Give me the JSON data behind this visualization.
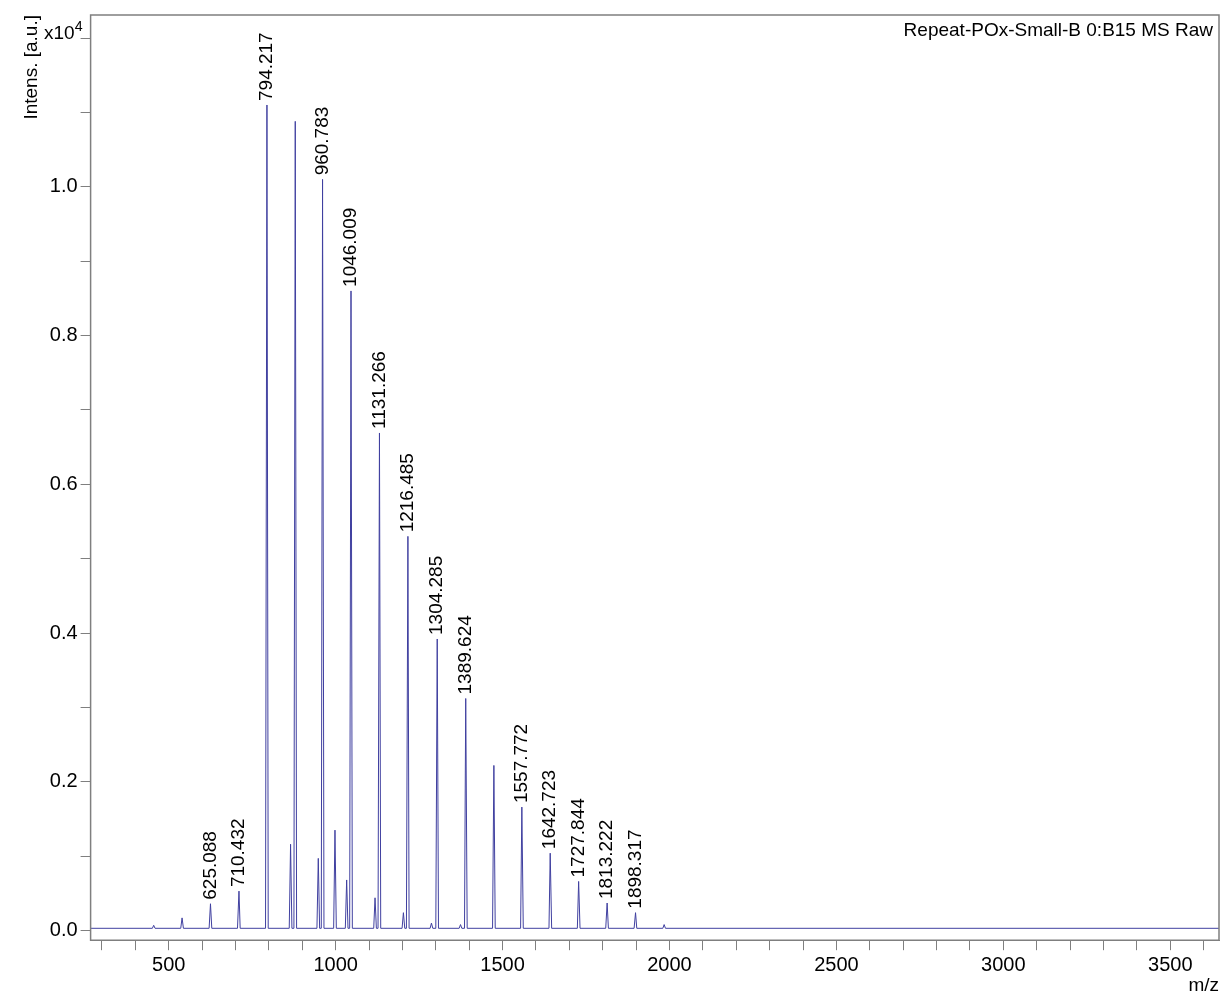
{
  "chart_data": {
    "type": "line",
    "xlabel": "m/z",
    "ylabel": "Intens. [a.u.]",
    "annotations": [
      "Repeat-POx-Small-B 0:B15 MS Raw",
      "x10$^{4}$",
      {
        "text": "625.088",
        "x": 625.088,
        "y": 0.036
      },
      {
        "text": "710.432",
        "x": 710.432,
        "y": 0.053
      },
      {
        "text": "794.217",
        "x": 794.217,
        "y": 1.11
      },
      {
        "text": "960.783",
        "x": 960.783,
        "y": 1.01
      },
      {
        "text": "1046.009",
        "x": 1046.009,
        "y": 0.86
      },
      {
        "text": "1131.266",
        "x": 1131.266,
        "y": 0.669
      },
      {
        "text": "1216.485",
        "x": 1216.485,
        "y": 0.53
      },
      {
        "text": "1304.285",
        "x": 1304.285,
        "y": 0.392
      },
      {
        "text": "1389.624",
        "x": 1389.624,
        "y": 0.312
      },
      {
        "text": "1557.772",
        "x": 1557.772,
        "y": 0.166
      },
      {
        "text": "1642.723",
        "x": 1642.723,
        "y": 0.104
      },
      {
        "text": "1727.844",
        "x": 1727.844,
        "y": 0.066
      },
      {
        "text": "1813.222",
        "x": 1813.222,
        "y": 0.037
      },
      {
        "text": "1898.317",
        "x": 1898.317,
        "y": 0.024
      }
    ],
    "x": [
      266,
      451,
      455,
      459,
      536,
      540,
      544,
      621,
      625.088,
      629,
      706,
      710.432,
      714,
      790,
      794.217,
      798,
      861,
      865,
      869,
      875,
      879,
      883,
      944,
      948,
      952,
      957,
      960.783,
      965,
      994,
      998,
      1002,
      1029,
      1033,
      1037,
      1042,
      1046.009,
      1050,
      1114,
      1118,
      1122,
      1127,
      1131.266,
      1135,
      1199,
      1203,
      1207,
      1212,
      1216.485,
      1220,
      1283,
      1287,
      1291,
      1300,
      1304.285,
      1308,
      1370,
      1374,
      1378,
      1386,
      1389.624,
      1394,
      1470,
      1474,
      1478,
      1554,
      1557.772,
      1562,
      1639,
      1642.723,
      1647,
      1724,
      1727.844,
      1732,
      1809,
      1813.222,
      1817,
      1894,
      1898.317,
      1902,
      1980,
      1984,
      1988,
      3646
    ],
    "series": [
      {
        "color": "#4040a0",
        "values": [
          0.003,
          0.003,
          0.007,
          0.003,
          0.003,
          0.017,
          0.003,
          0.003,
          0.036,
          0.003,
          0.003,
          0.053,
          0.003,
          0.003,
          1.11,
          0.003,
          0.003,
          0.116,
          0.003,
          0.003,
          1.088,
          0.003,
          0.003,
          0.097,
          0.003,
          0.003,
          1.01,
          0.003,
          0.003,
          0.135,
          0.003,
          0.003,
          0.068,
          0.003,
          0.003,
          0.86,
          0.003,
          0.003,
          0.044,
          0.003,
          0.003,
          0.669,
          0.003,
          0.003,
          0.024,
          0.003,
          0.003,
          0.53,
          0.003,
          0.003,
          0.01,
          0.003,
          0.003,
          0.392,
          0.003,
          0.003,
          0.008,
          0.003,
          0.003,
          0.312,
          0.003,
          0.003,
          0.222,
          0.003,
          0.003,
          0.166,
          0.003,
          0.003,
          0.104,
          0.003,
          0.003,
          0.066,
          0.003,
          0.003,
          0.037,
          0.003,
          0.003,
          0.024,
          0.003,
          0.003,
          0.008,
          0.003,
          0.003
        ]
      }
    ],
    "xlim": [
      266,
      3646
    ],
    "ylim": [
      -0.013,
      1.231
    ],
    "xticks": [
      {
        "value": 300,
        "label": null
      },
      {
        "value": 400,
        "label": null
      },
      500,
      {
        "value": 600,
        "label": null
      },
      {
        "value": 700,
        "label": null
      },
      {
        "value": 800,
        "label": null
      },
      {
        "value": 900,
        "label": null
      },
      1000,
      {
        "value": 1100,
        "label": null
      },
      {
        "value": 1200,
        "label": null
      },
      {
        "value": 1300,
        "label": null
      },
      {
        "value": 1400,
        "label": null
      },
      1500,
      {
        "value": 1600,
        "label": null
      },
      {
        "value": 1700,
        "label": null
      },
      {
        "value": 1800,
        "label": null
      },
      {
        "value": 1900,
        "label": null
      },
      2000,
      {
        "value": 2100,
        "label": null
      },
      {
        "value": 2200,
        "label": null
      },
      {
        "value": 2300,
        "label": null
      },
      {
        "value": 2400,
        "label": null
      },
      2500,
      {
        "value": 2600,
        "label": null
      },
      {
        "value": 2700,
        "label": null
      },
      {
        "value": 2800,
        "label": null
      },
      {
        "value": 2900,
        "label": null
      },
      3000,
      {
        "value": 3100,
        "label": null
      },
      {
        "value": 3200,
        "label": null
      },
      {
        "value": 3300,
        "label": null
      },
      {
        "value": 3400,
        "label": null
      },
      3500,
      {
        "value": 3600,
        "label": null
      }
    ],
    "yticks": [
      {
        "value": 0,
        "label": "0.0"
      },
      {
        "value": 0.1,
        "label": null
      },
      {
        "value": 0.2,
        "label": "0.2"
      },
      {
        "value": 0.3,
        "label": null
      },
      {
        "value": 0.4,
        "label": "0.4"
      },
      {
        "value": 0.5,
        "label": null
      },
      {
        "value": 0.6,
        "label": "0.6"
      },
      {
        "value": 0.7,
        "label": null
      },
      {
        "value": 0.8,
        "label": "0.8"
      },
      {
        "value": 0.9,
        "label": null
      },
      {
        "value": 1.0,
        "label": "1.0"
      },
      {
        "value": 1.1,
        "label": null
      },
      {
        "value": 1.2,
        "label": null
      }
    ],
    "grid": false,
    "legend": false,
    "marker": "none",
    "line_style": "solid"
  }
}
